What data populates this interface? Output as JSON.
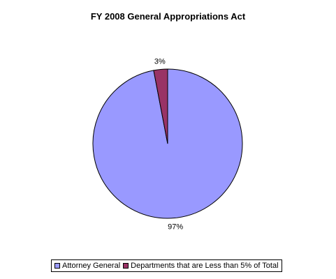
{
  "chart_data": {
    "type": "pie",
    "title": "FY 2008 General Appropriations Act",
    "slices": [
      {
        "label": "Attorney General",
        "value": 97,
        "display": "97%",
        "color": "#9999ff"
      },
      {
        "label": "Departments that are Less than 5% of Total",
        "value": 3,
        "display": "3%",
        "color": "#993366"
      }
    ],
    "legend": "bottom"
  }
}
